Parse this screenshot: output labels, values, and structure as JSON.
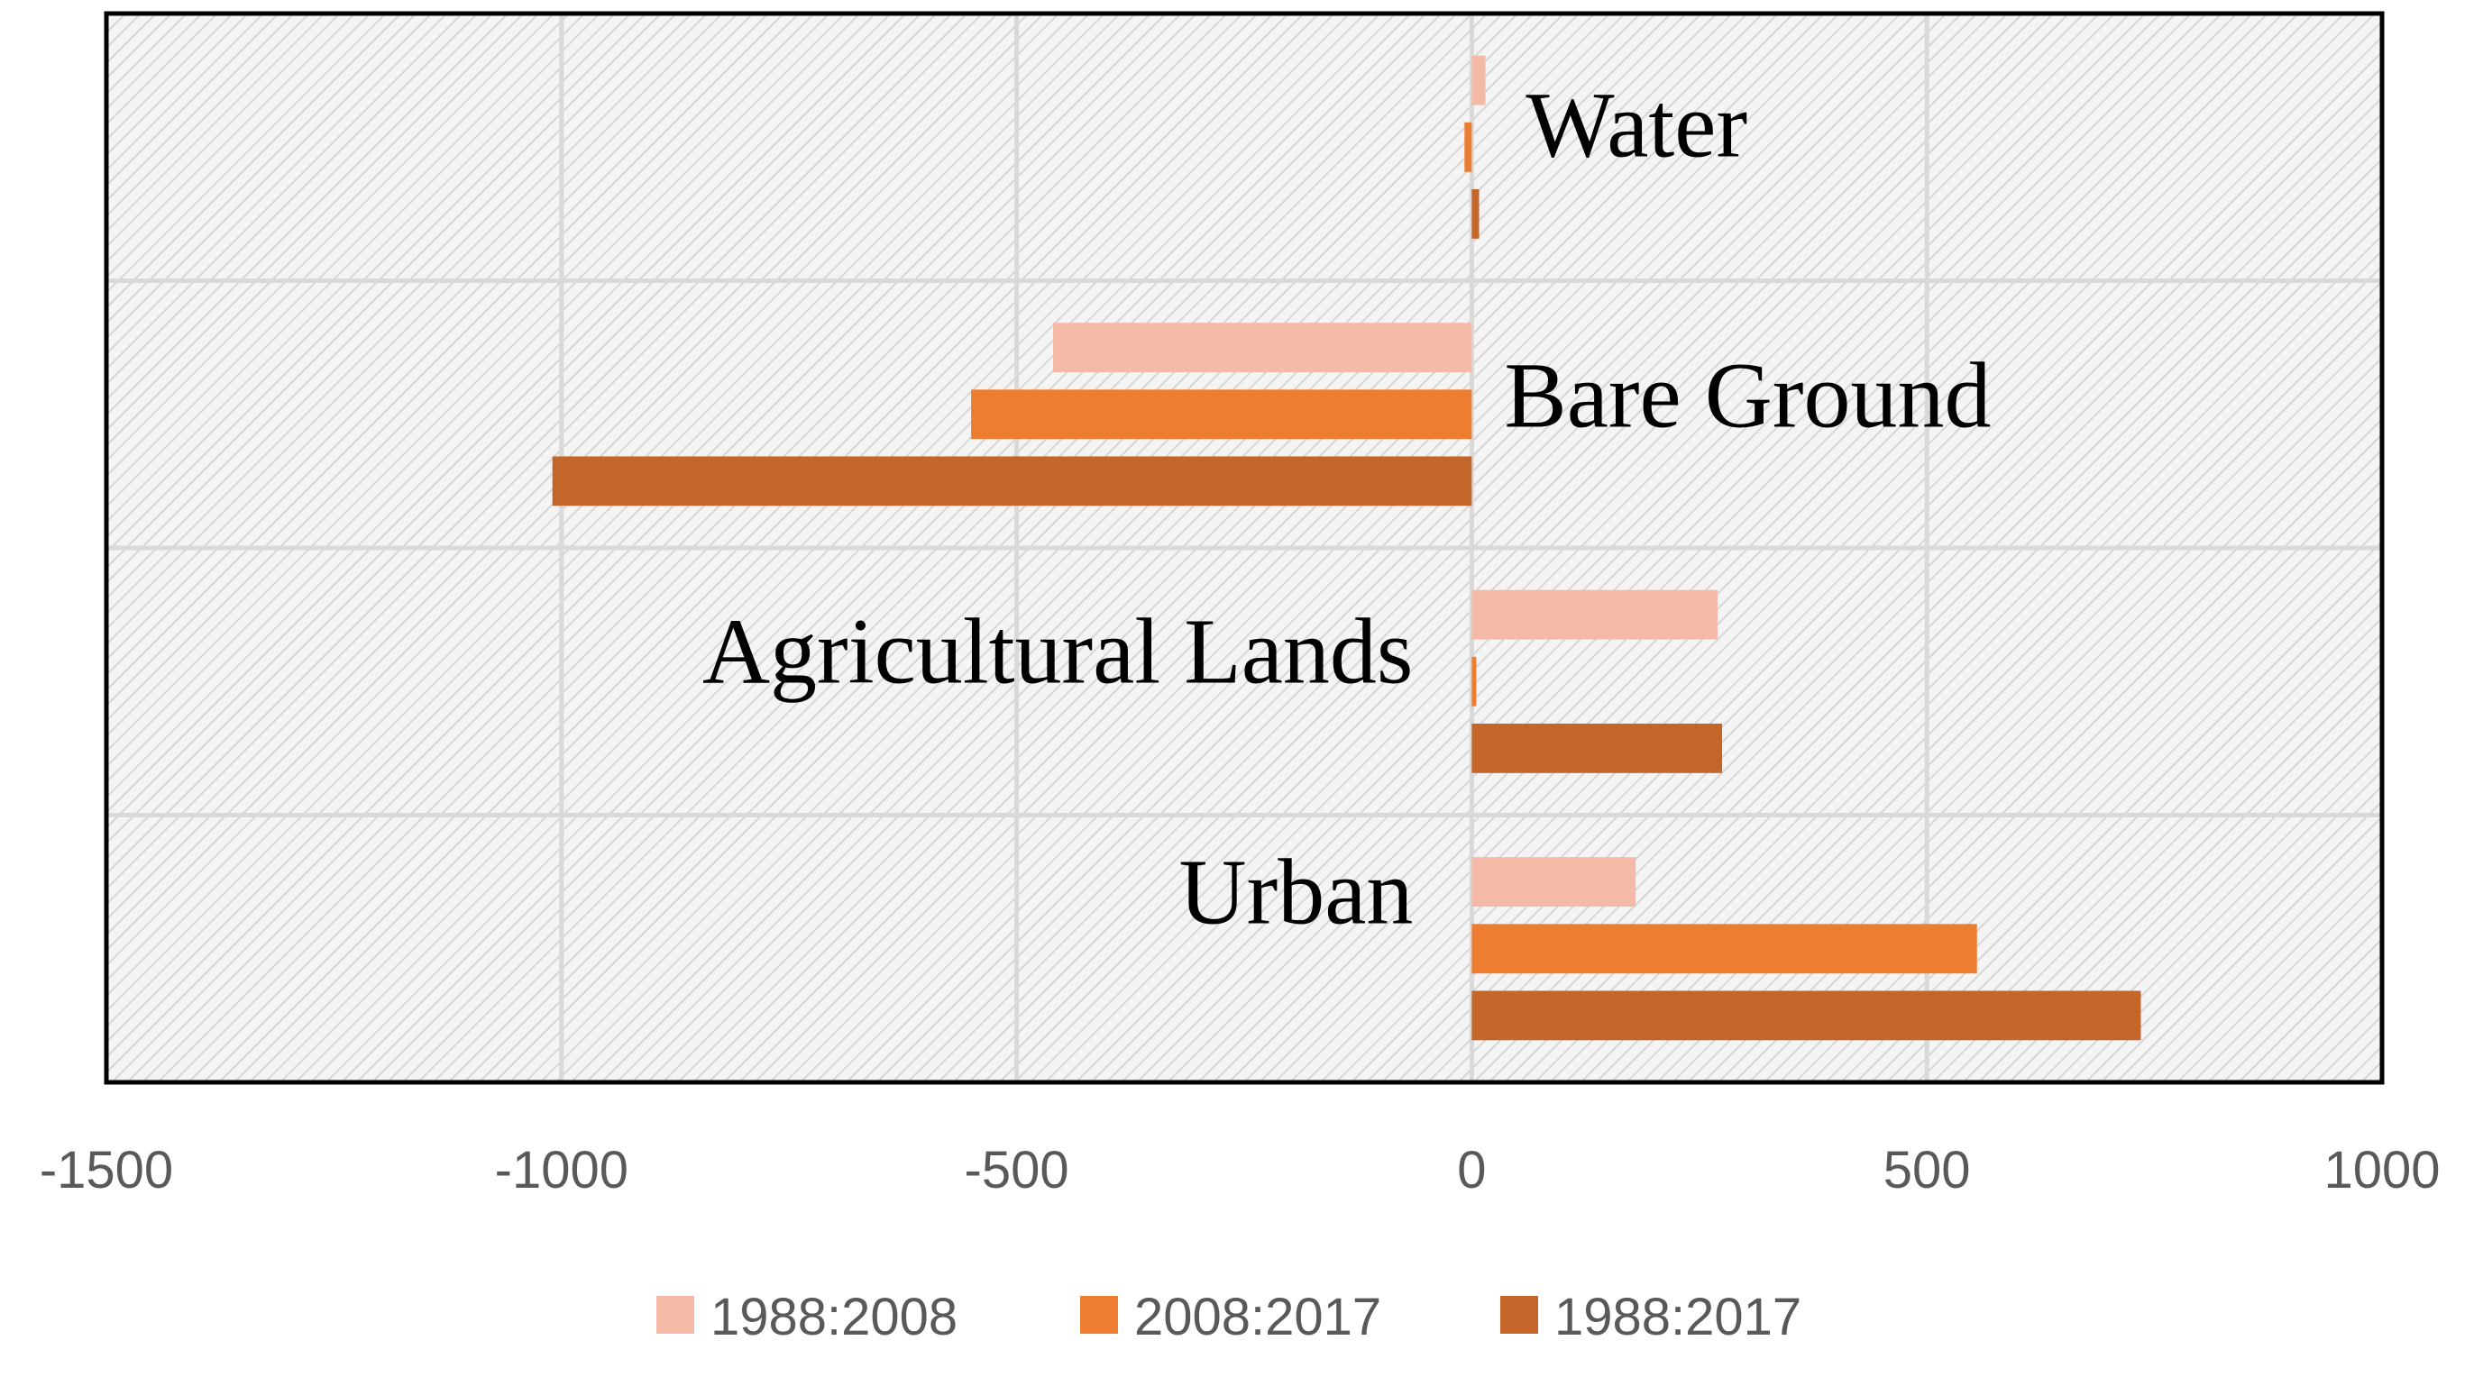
{
  "chart_data": {
    "type": "bar",
    "orientation": "horizontal",
    "categories": [
      "Water",
      "Bare Ground",
      "Agricultural Lands",
      "Urban"
    ],
    "series": [
      {
        "name": "1988:2008",
        "color": "#f4b9a7",
        "values": [
          15,
          -460,
          270,
          180
        ]
      },
      {
        "name": "2008:2017",
        "color": "#ed7d31",
        "values": [
          -8,
          -550,
          5,
          555
        ]
      },
      {
        "name": "1988:2017",
        "color": "#c4652a",
        "values": [
          8,
          -1010,
          275,
          735
        ]
      }
    ],
    "xlim": [
      -1500,
      1000
    ],
    "xticks": [
      -1500,
      -1000,
      -500,
      0,
      500,
      1000
    ],
    "xtick_labels": [
      "-1500",
      "-1000",
      "-500",
      "0",
      "500",
      "1000"
    ],
    "grid": true,
    "plot_background": "#f2f2f2",
    "grid_color": "#d9d9d9",
    "legend_position": "bottom",
    "title": "",
    "xlabel": "",
    "ylabel": ""
  }
}
